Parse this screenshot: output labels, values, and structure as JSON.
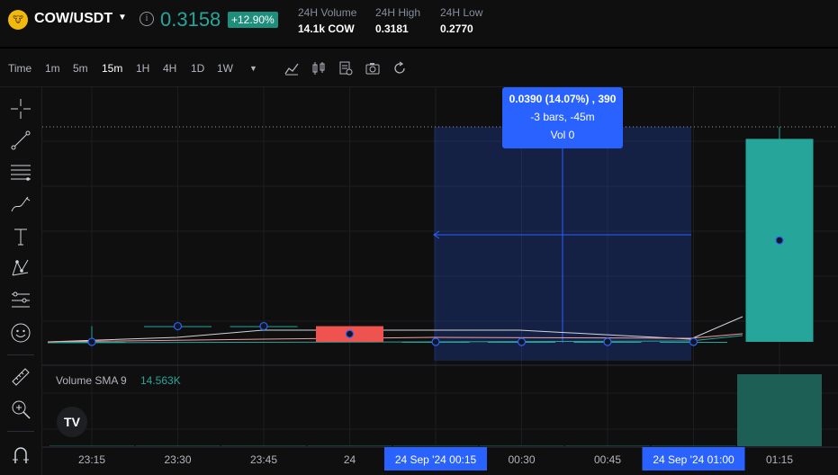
{
  "header": {
    "logo_text": "🐮",
    "pair": "COW/USDT",
    "price": "0.3158",
    "change": "+12.90%",
    "stats": [
      {
        "label": "24H Volume",
        "value": "14.1k COW"
      },
      {
        "label": "24H High",
        "value": "0.3181"
      },
      {
        "label": "24H Low",
        "value": "0.2770"
      }
    ]
  },
  "toolbar": {
    "timeframes": [
      "Time",
      "1m",
      "5m",
      "15m",
      "1H",
      "4H",
      "1D",
      "1W"
    ],
    "active_timeframe": "15m",
    "icons": [
      "indicators-icon",
      "candle-type-icon",
      "template-icon",
      "snapshot-icon",
      "reload-icon"
    ]
  },
  "left_tools": [
    "crosshair-icon",
    "trendline-icon",
    "fib-icon",
    "brush-icon",
    "text-icon",
    "pattern-icon",
    "prediction-icon",
    "emoji-icon",
    "ruler-icon",
    "zoom-icon",
    "magnet-icon"
  ],
  "volume": {
    "label": "Volume SMA 9",
    "value": "14.563K"
  },
  "measure_tooltip": {
    "line1": "0.0390 (14.07%) , 390",
    "line2": "-3 bars, -45m",
    "line3": "Vol 0"
  },
  "colors": {
    "up": "#26a69a",
    "down": "#ef5350",
    "accent": "#2962ff"
  },
  "chart_data": {
    "type": "candlestick",
    "x_ticks": [
      "23:15",
      "23:30",
      "23:45",
      "24",
      "24 Sep '24  00:15",
      "00:30",
      "00:45",
      "24 Sep '24  01:00",
      "01:15"
    ],
    "highlight_ticks": [
      "24 Sep '24  00:15",
      "24 Sep '24  01:00"
    ],
    "candles": [
      {
        "time": "23:15",
        "open": 0.277,
        "high": 0.28,
        "low": 0.277,
        "close": 0.277
      },
      {
        "time": "23:30",
        "open": 0.28,
        "high": 0.28,
        "low": 0.28,
        "close": 0.28
      },
      {
        "time": "23:45",
        "open": 0.28,
        "high": 0.28,
        "low": 0.28,
        "close": 0.28
      },
      {
        "time": "00:00",
        "open": 0.28,
        "high": 0.28,
        "low": 0.277,
        "close": 0.277
      },
      {
        "time": "00:15",
        "open": 0.277,
        "high": 0.277,
        "low": 0.277,
        "close": 0.277
      },
      {
        "time": "00:30",
        "open": 0.277,
        "high": 0.277,
        "low": 0.277,
        "close": 0.277
      },
      {
        "time": "00:45",
        "open": 0.277,
        "high": 0.277,
        "low": 0.277,
        "close": 0.277
      },
      {
        "time": "01:00",
        "open": 0.277,
        "high": 0.277,
        "low": 0.277,
        "close": 0.277
      },
      {
        "time": "01:15",
        "open": 0.277,
        "high": 0.3181,
        "low": 0.277,
        "close": 0.3158
      }
    ],
    "volume_bars": [
      0,
      0,
      0,
      0,
      0,
      0,
      0,
      0,
      14.1
    ]
  }
}
